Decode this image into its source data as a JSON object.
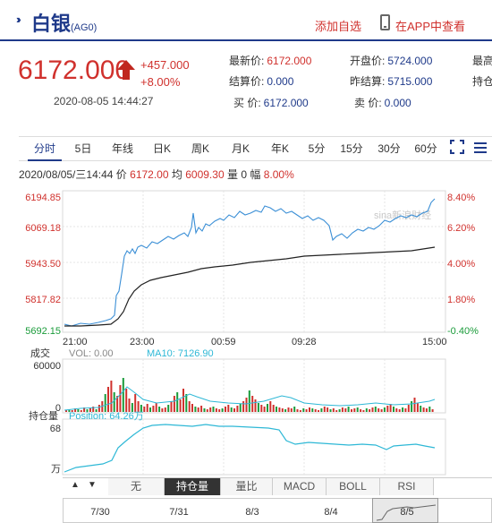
{
  "header": {
    "name": "白银",
    "code": "(AG0)",
    "add_favorite": "添加自选",
    "app_link": "在APP中查看"
  },
  "quote": {
    "price": "6172.000",
    "change": "+457.000",
    "change_pct": "+8.00%",
    "time": "2020-08-05 14:44:27",
    "fields": [
      {
        "label": "最新价:",
        "value": "6172.000",
        "color": "red"
      },
      {
        "label": "开盘价:",
        "value": "5724.000",
        "color": "blue"
      },
      {
        "label": "最高",
        "value": "",
        "color": "blue"
      },
      {
        "label": "结算价:",
        "value": "0.000",
        "color": "blue"
      },
      {
        "label": "昨结算:",
        "value": "5715.000",
        "color": "blue"
      },
      {
        "label": "持仓",
        "value": "",
        "color": "blue"
      },
      {
        "label": "买  价:",
        "value": "6172.000",
        "color": "blue"
      },
      {
        "label": "卖  价:",
        "value": "0.000",
        "color": "blue"
      }
    ]
  },
  "tabs": [
    "分时",
    "5日",
    "年线",
    "日K",
    "周K",
    "月K",
    "年K",
    "5分",
    "15分",
    "30分",
    "60分"
  ],
  "active_tab": "分时",
  "infoline": {
    "datetime": "2020/08/05/三14:44",
    "price_label": "价",
    "price": "6172.00",
    "avg_label": "均",
    "avg": "6009.30",
    "vol_label": "量",
    "vol": "0",
    "pos_label": "幅",
    "pct": "8.00%"
  },
  "price_chart": {
    "y_labels": [
      "6194.85",
      "6069.18",
      "5943.50",
      "5817.82",
      "5692.15"
    ],
    "pct_labels": [
      "8.40%",
      "6.20%",
      "4.00%",
      "1.80%",
      "-0.40%"
    ],
    "x_labels": [
      "21:00",
      "23:00",
      "00:59",
      "09:28",
      "15:00"
    ],
    "watermark": "sina新浪财经"
  },
  "volume_chart": {
    "title": "成交",
    "vol_label": "VOL: 0.00",
    "ma_label": "MA10: 7126.90",
    "y_labels": [
      "60000",
      "0"
    ]
  },
  "position_chart": {
    "title": "持仓量",
    "position_label": "Position: 64.26万",
    "y_top": "68",
    "y_unit": "万"
  },
  "bottom_tabs": [
    "无",
    "持仓量",
    "量比",
    "MACD",
    "BOLL",
    "RSI"
  ],
  "active_bottom_tab": "持仓量",
  "timeline_dates": [
    "7/30",
    "7/31",
    "8/3",
    "8/4",
    "8/5"
  ],
  "colors": {
    "up": "#d0312d",
    "down": "#1a9b3a",
    "brand": "#1f3a8a",
    "price_line": "#3b8fd6",
    "avg_line": "#222222",
    "position_line": "#2eb8d6"
  }
}
